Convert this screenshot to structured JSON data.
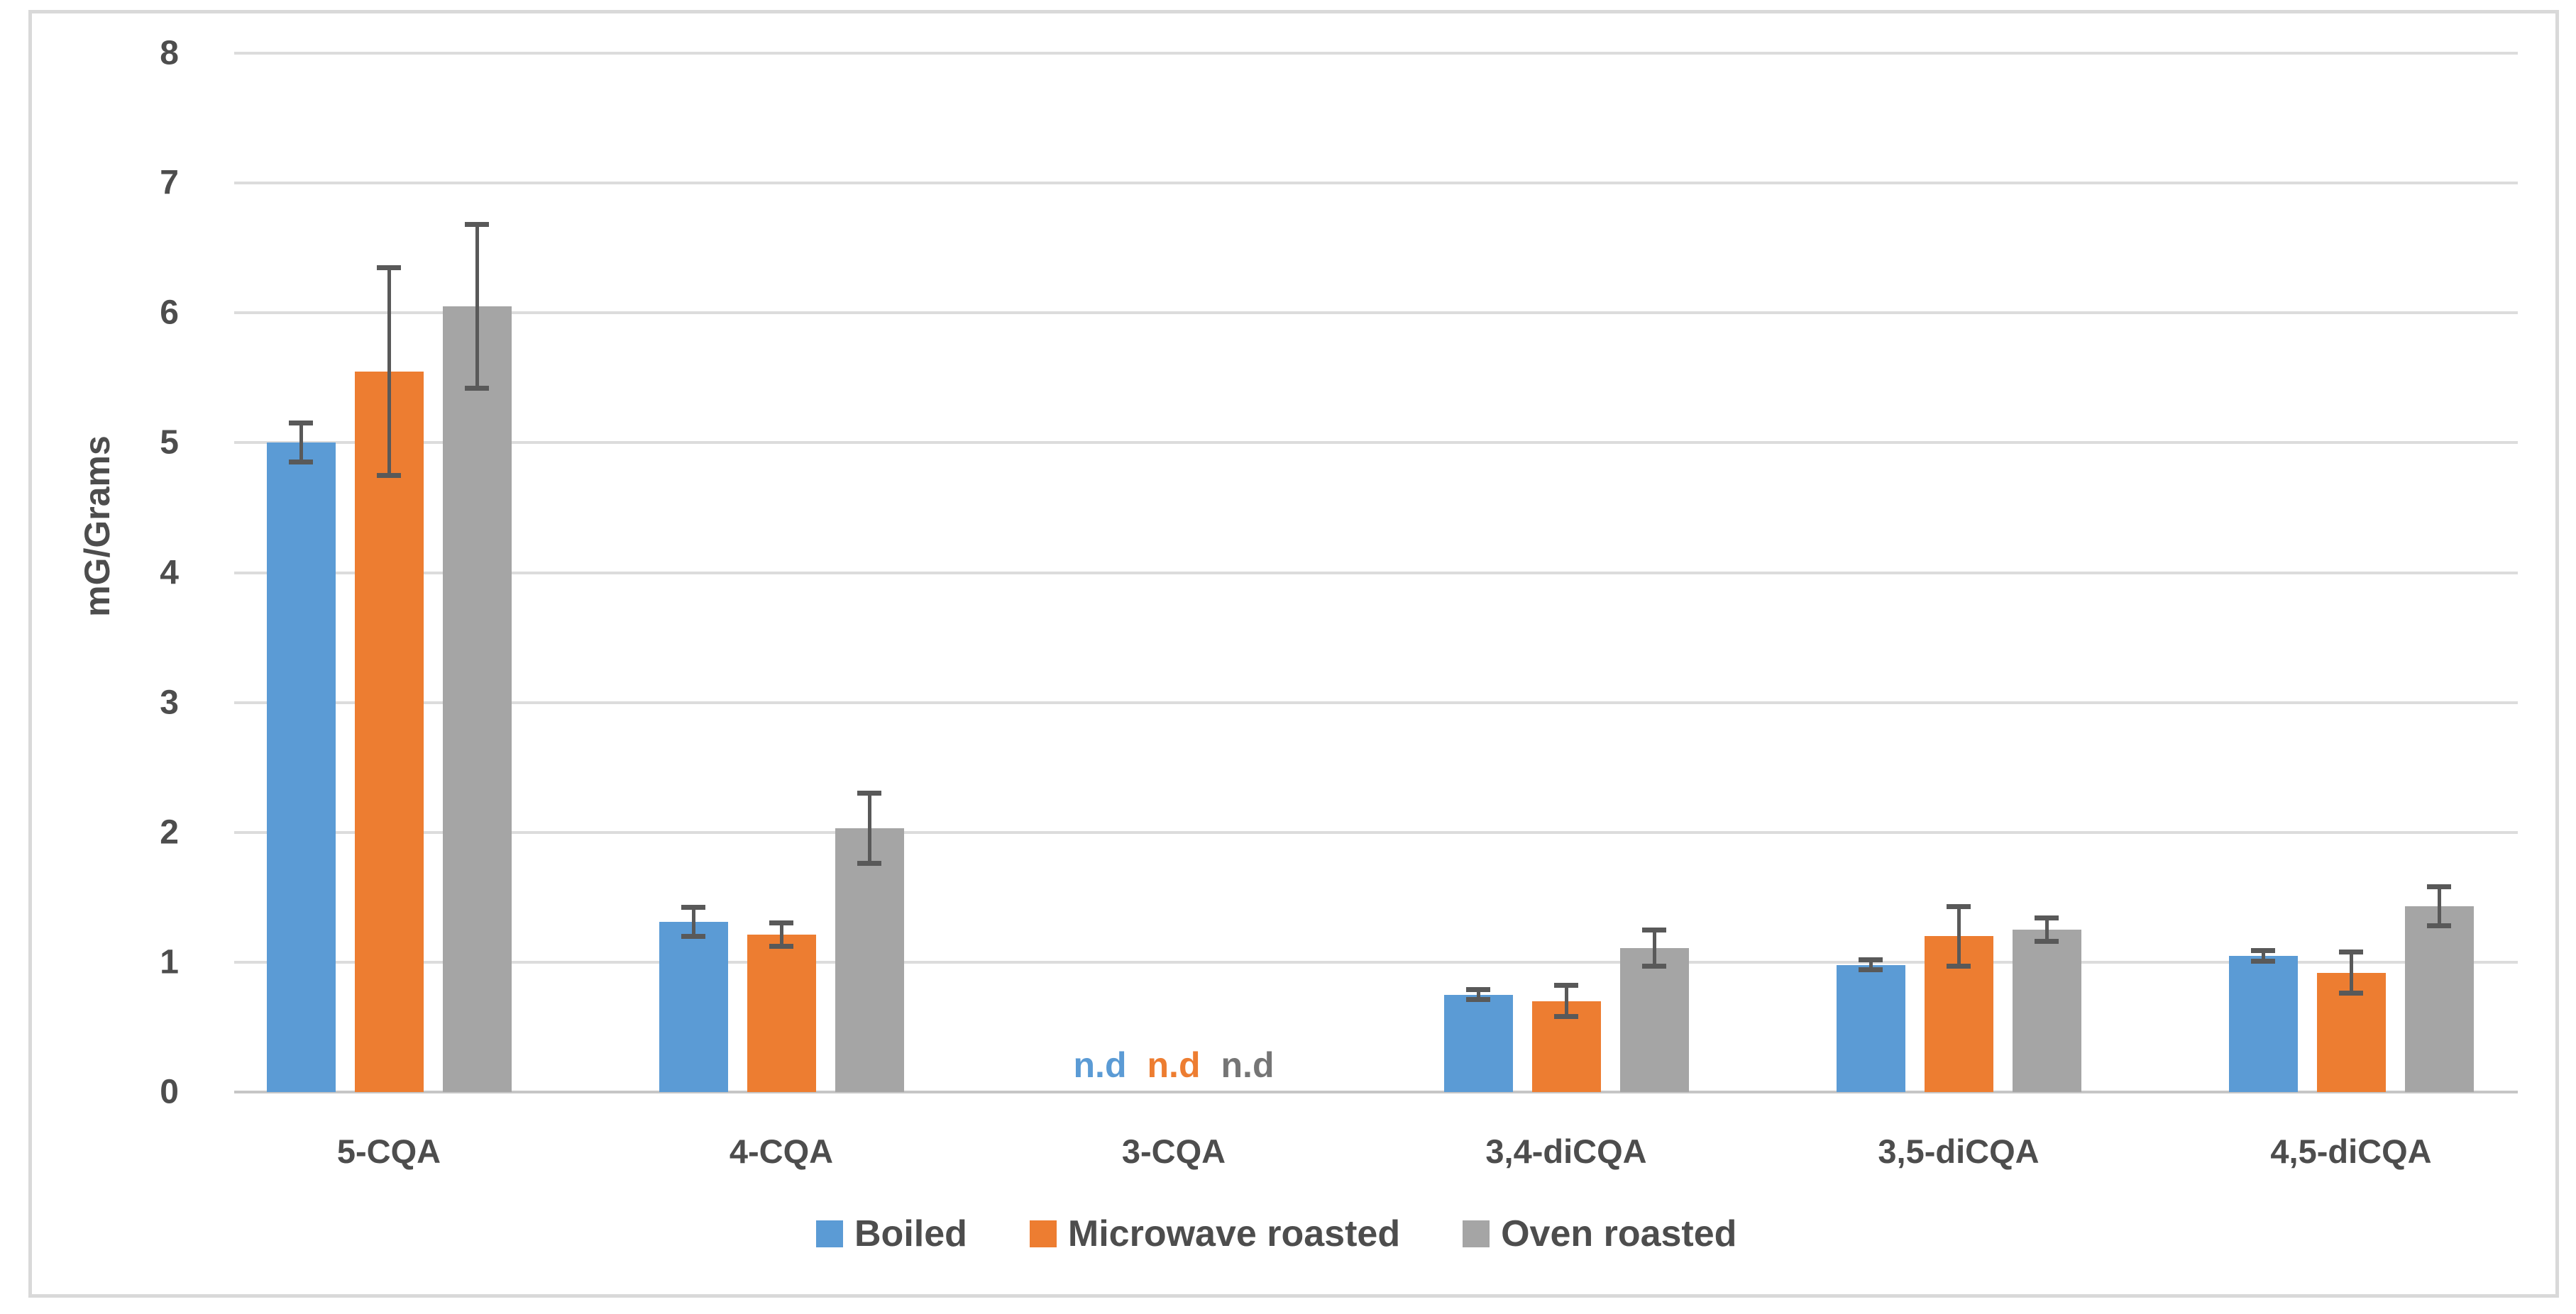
{
  "chart_data": {
    "type": "bar",
    "title": "",
    "ylabel": "mG/Grams",
    "xlabel": "",
    "categories": [
      "5-CQA",
      "4-CQA",
      "3-CQA",
      "3,4-diCQA",
      "3,5-diCQA",
      "4,5-diCQA"
    ],
    "series": [
      {
        "name": "Boiled",
        "color": "#5B9BD5",
        "nd_color": "#5B9BD5",
        "values": [
          5.0,
          1.31,
          null,
          0.75,
          0.98,
          1.05
        ],
        "errors": [
          0.15,
          0.11,
          null,
          0.04,
          0.04,
          0.04
        ]
      },
      {
        "name": "Microwave roasted",
        "color": "#ED7D31",
        "nd_color": "#ED7D31",
        "values": [
          5.55,
          1.21,
          null,
          0.7,
          1.2,
          0.92
        ],
        "errors": [
          0.8,
          0.09,
          null,
          0.12,
          0.23,
          0.16
        ]
      },
      {
        "name": "Oven roasted",
        "color": "#A5A5A5",
        "nd_color": "#757575",
        "values": [
          6.05,
          2.03,
          null,
          1.11,
          1.25,
          1.43
        ],
        "errors": [
          0.63,
          0.27,
          null,
          0.14,
          0.09,
          0.15
        ]
      }
    ],
    "not_detected_label": "n.d",
    "y_ticks": [
      0,
      1,
      2,
      3,
      4,
      5,
      6,
      7,
      8
    ],
    "ylim": [
      0,
      8
    ],
    "grid": true,
    "error_bars": true,
    "legend_position": "bottom"
  },
  "colors": {
    "background": "#FFFFFF",
    "frame": "#D9D9D9",
    "gridline": "#DCDCDC",
    "axis_line": "#C6C6C6",
    "text": "#4D4D4D",
    "error_bar": "#595959"
  }
}
